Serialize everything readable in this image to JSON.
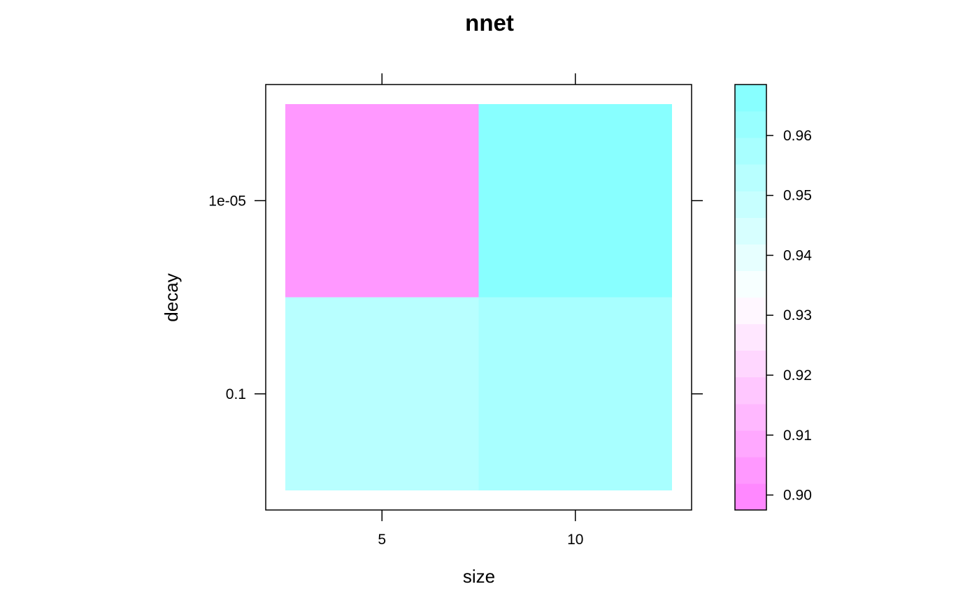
{
  "chart_data": {
    "type": "heatmap",
    "title": "nnet",
    "xlabel": "size",
    "ylabel": "decay",
    "x_categories": [
      "5",
      "10"
    ],
    "y_categories": [
      "0.1",
      "1e-05"
    ],
    "cells": [
      {
        "x": "5",
        "y": "1e-05",
        "value": 0.903
      },
      {
        "x": "10",
        "y": "1e-05",
        "value": 0.966
      },
      {
        "x": "5",
        "y": "0.1",
        "value": 0.952
      },
      {
        "x": "10",
        "y": "0.1",
        "value": 0.959
      }
    ],
    "colorkey": {
      "range": [
        0.8975,
        0.9685
      ],
      "ticks": [
        "0.90",
        "0.91",
        "0.92",
        "0.93",
        "0.94",
        "0.95",
        "0.96"
      ],
      "low_color": "#ff80ff",
      "mid_color": "#ffffff",
      "high_color": "#80ffff",
      "levels": 16,
      "placement": "right"
    }
  }
}
